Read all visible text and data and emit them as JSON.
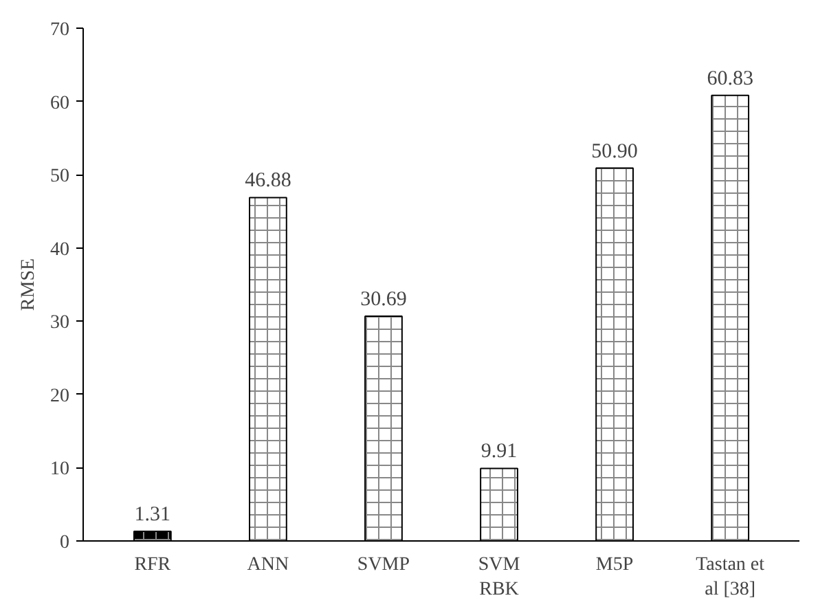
{
  "chart_data": {
    "type": "bar",
    "ylabel": "RMSE",
    "categories": [
      "RFR",
      "ANN",
      "SVMP",
      "SVM\nRBK",
      "M5P",
      "Tastan et\nal [38]"
    ],
    "values": [
      1.31,
      46.88,
      30.69,
      9.91,
      50.9,
      60.83
    ],
    "value_labels": [
      "1.31",
      "46.88",
      "30.69",
      "9.91",
      "50.90",
      "60.83"
    ],
    "colors": [
      "#000000",
      "#ffffff",
      "#ffffff",
      "#ffffff",
      "#ffffff",
      "#ffffff"
    ],
    "ylim": [
      0,
      70
    ],
    "yticks": [
      0,
      10,
      20,
      30,
      40,
      50,
      60,
      70
    ],
    "grid": false
  }
}
